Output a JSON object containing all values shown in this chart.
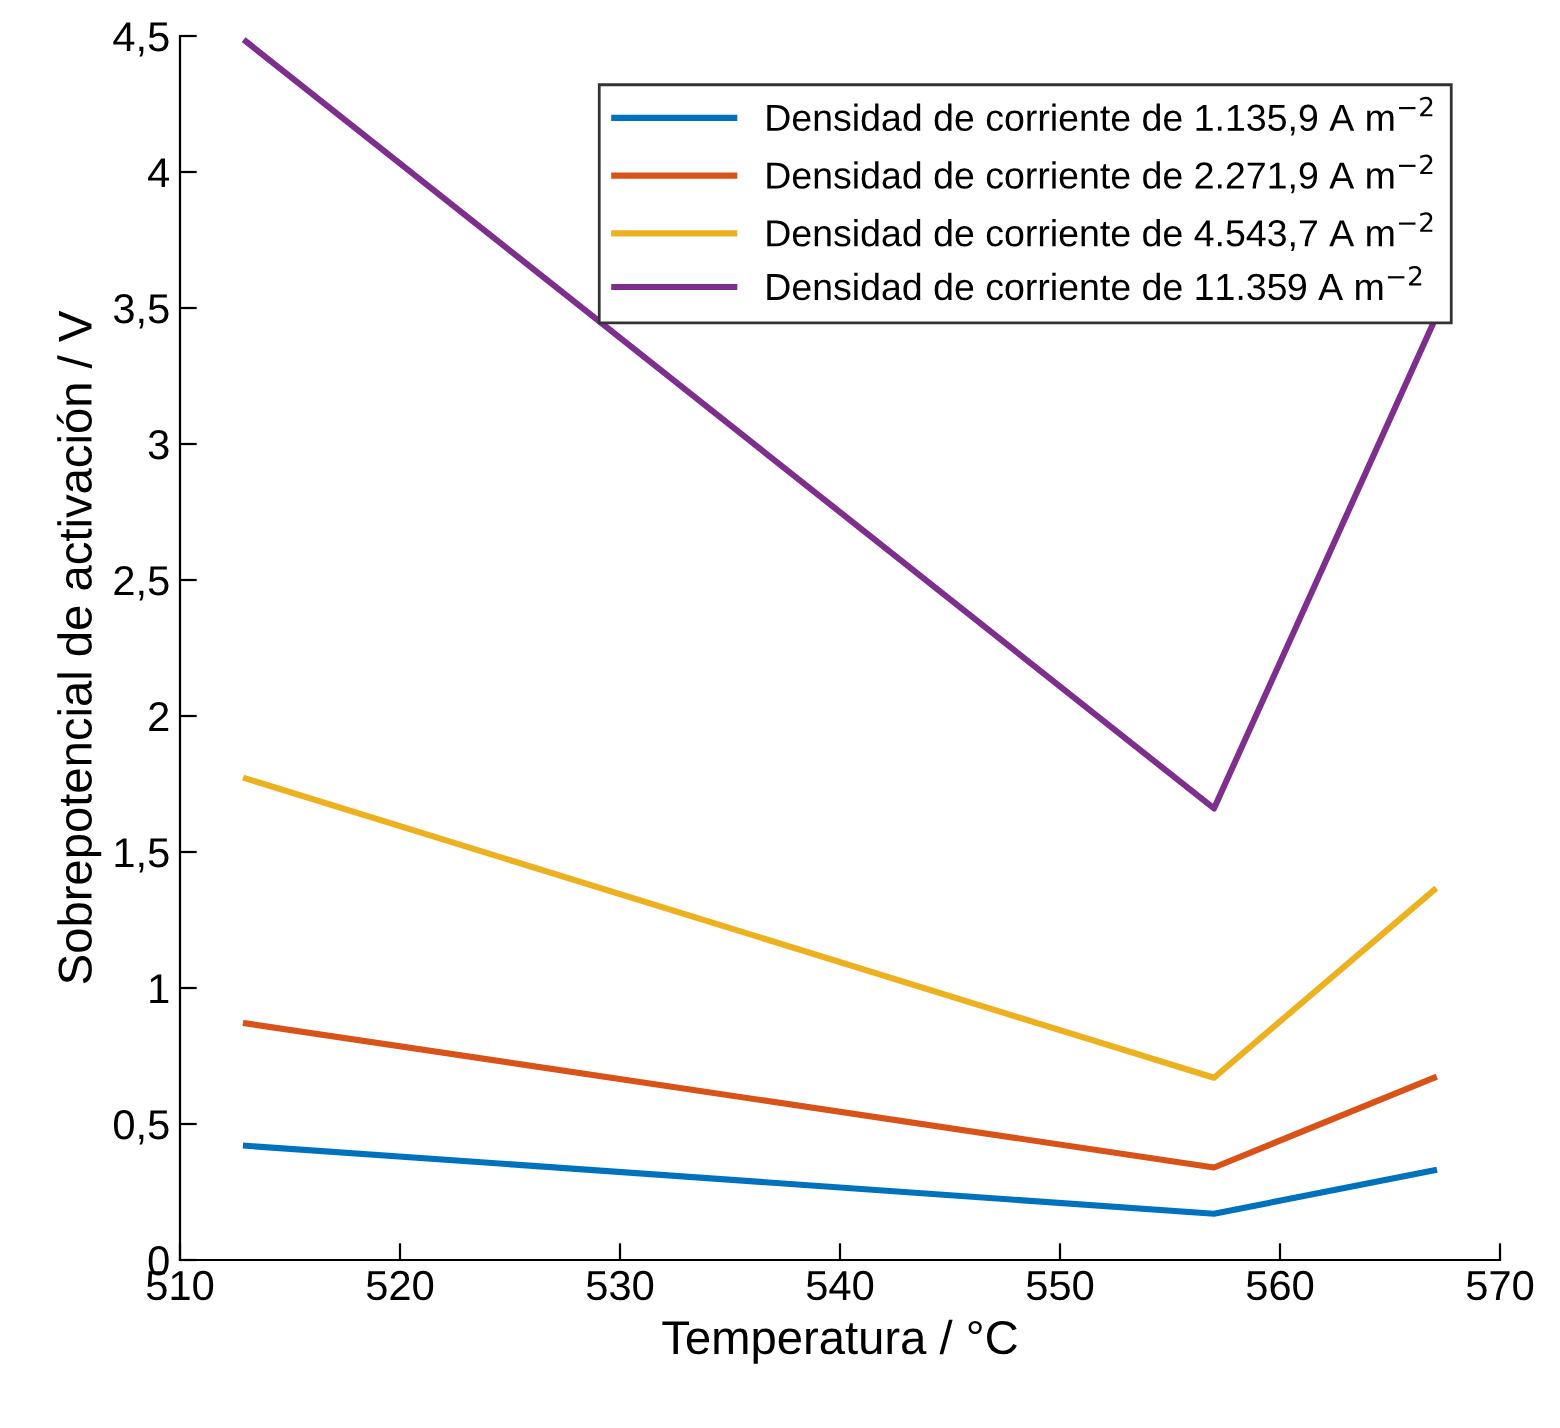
{
  "chart_data": {
    "type": "line",
    "xlabel": "Temperatura / °C",
    "ylabel": "Sobrepotencial de activación / V",
    "x": [
      513,
      557,
      567
    ],
    "series": [
      {
        "name": "Densidad de corriente de 1.135,9 A m$^{−2}$",
        "color": "#0072bd",
        "values": [
          0.42,
          0.17,
          0.33
        ]
      },
      {
        "name": "Densidad de corriente de 2.271,9 A m$^{−2}$",
        "color": "#d95319",
        "values": [
          0.87,
          0.34,
          0.67
        ]
      },
      {
        "name": "Densidad de corriente de 4.543,7 A m$^{−2}$",
        "color": "#edb120",
        "values": [
          1.77,
          0.67,
          1.36
        ]
      },
      {
        "name": "Densidad de corriente de 11.359 A m$^{−2}$",
        "color": "#7e2f8e",
        "values": [
          4.48,
          1.66,
          3.45
        ]
      }
    ],
    "xlim": [
      510,
      570
    ],
    "xticks": [
      510,
      520,
      530,
      540,
      550,
      560,
      570
    ],
    "ylim": [
      0,
      4.5
    ],
    "yticks": [
      0,
      {
        "value": 0.5,
        "label": "0,5"
      },
      1,
      {
        "value": 1.5,
        "label": "1,5"
      },
      2,
      {
        "value": 2.5,
        "label": "2,5"
      },
      3,
      {
        "value": 3.5,
        "label": "3,5"
      },
      4,
      {
        "value": 4.5,
        "label": "4,5"
      }
    ],
    "grid": false,
    "legend": "top right",
    "line_style": "solid",
    "marker": "none"
  }
}
